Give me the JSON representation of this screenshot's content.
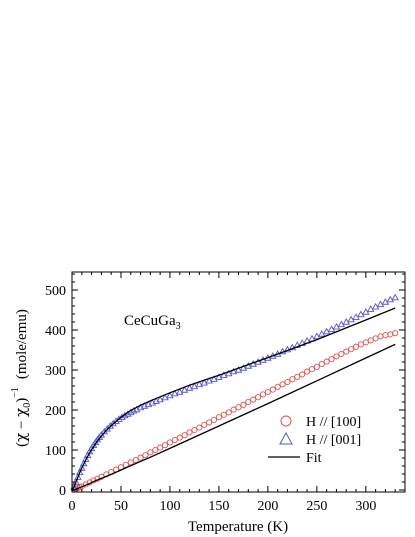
{
  "chart_data": {
    "type": "scatter",
    "annotation": {
      "base": "CeCuGa",
      "subscript": "3"
    },
    "xlabel": "Temperature (K)",
    "ylabel": {
      "prefix": "(",
      "chi": "χ",
      "minus": " − ",
      "chi0": "χ",
      "chi0_sub": "0",
      "close": ")",
      "sup": "−1",
      "units": "(mole/emu)"
    },
    "xlim": [
      0,
      340
    ],
    "ylim": [
      -5,
      545
    ],
    "xticks": [
      0,
      50,
      100,
      150,
      200,
      250,
      300
    ],
    "yticks": [
      0,
      100,
      200,
      300,
      400,
      500
    ],
    "grid": false,
    "legend": {
      "placement": "lower-right",
      "entries": [
        {
          "label": "H // [100]",
          "marker": "circle",
          "color": "#e05050"
        },
        {
          "label": "H // [001]",
          "marker": "triangle",
          "color": "#5555cc"
        },
        {
          "label": "Fit",
          "marker": "line",
          "color": "#000000"
        }
      ]
    },
    "series": [
      {
        "name": "H // [100]",
        "marker": "circle",
        "color": "#e05050",
        "x": [
          2,
          4,
          6,
          8,
          10,
          14,
          18,
          22,
          26,
          30,
          35,
          40,
          45,
          50,
          55,
          60,
          65,
          70,
          75,
          80,
          85,
          90,
          95,
          100,
          105,
          110,
          115,
          120,
          125,
          130,
          135,
          140,
          145,
          150,
          155,
          160,
          165,
          170,
          175,
          180,
          185,
          190,
          195,
          200,
          205,
          210,
          215,
          220,
          225,
          230,
          235,
          240,
          245,
          250,
          255,
          260,
          265,
          270,
          275,
          280,
          285,
          290,
          295,
          300,
          305,
          310,
          315,
          320,
          325,
          330
        ],
        "y": [
          1,
          3,
          5,
          7,
          9,
          14,
          19,
          24,
          28,
          33,
          39,
          45,
          51,
          57,
          63,
          69,
          75,
          81,
          87,
          94,
          100,
          106,
          112,
          119,
          125,
          131,
          137,
          144,
          150,
          156,
          163,
          169,
          175,
          182,
          188,
          194,
          201,
          207,
          213,
          220,
          226,
          232,
          239,
          245,
          251,
          258,
          264,
          270,
          277,
          283,
          289,
          296,
          302,
          308,
          315,
          321,
          327,
          334,
          340,
          346,
          352,
          358,
          364,
          369,
          374,
          379,
          384,
          387,
          389,
          392
        ]
      },
      {
        "name": "H // [001]",
        "marker": "triangle",
        "color": "#5555cc",
        "x": [
          2,
          4,
          6,
          8,
          10,
          12,
          14,
          16,
          18,
          20,
          22,
          24,
          26,
          28,
          30,
          33,
          36,
          39,
          42,
          45,
          48,
          51,
          54,
          57,
          60,
          63,
          66,
          70,
          74,
          78,
          82,
          86,
          90,
          95,
          100,
          105,
          110,
          115,
          120,
          125,
          130,
          135,
          140,
          145,
          150,
          155,
          160,
          165,
          170,
          175,
          180,
          185,
          190,
          195,
          200,
          205,
          210,
          215,
          220,
          225,
          230,
          235,
          240,
          245,
          250,
          255,
          260,
          265,
          270,
          275,
          280,
          285,
          290,
          295,
          300,
          305,
          310,
          315,
          320,
          325,
          330
        ],
        "y": [
          8,
          20,
          32,
          44,
          55,
          66,
          77,
          87,
          96,
          104,
          112,
          119,
          126,
          132,
          138,
          146,
          153,
          160,
          166,
          172,
          177,
          182,
          186,
          190,
          194,
          198,
          201,
          206,
          210,
          214,
          218,
          222,
          226,
          231,
          236,
          241,
          245,
          250,
          255,
          259,
          264,
          268,
          273,
          277,
          282,
          287,
          291,
          296,
          300,
          305,
          310,
          315,
          320,
          325,
          330,
          335,
          340,
          346,
          351,
          356,
          362,
          367,
          373,
          378,
          384,
          390,
          396,
          402,
          408,
          414,
          420,
          426,
          432,
          439,
          445,
          452,
          458,
          464,
          470,
          476,
          481
        ]
      }
    ],
    "fits": [
      {
        "name": "Fit",
        "color": "#000000",
        "x": [
          0.5,
          2,
          4,
          6,
          8,
          10,
          14,
          18,
          22,
          26,
          30,
          40,
          50,
          60,
          80,
          100,
          150,
          200,
          250,
          300,
          330
        ],
        "y": [
          -2,
          0,
          2,
          4,
          6,
          8,
          12,
          16,
          21,
          25,
          29,
          39,
          50,
          61,
          82,
          104,
          160,
          216,
          273,
          330,
          364
        ]
      },
      {
        "name": "Fit",
        "color": "#000000",
        "x": [
          0.5,
          2,
          4,
          6,
          8,
          10,
          12,
          15,
          20,
          25,
          30,
          35,
          40,
          50,
          60,
          70,
          80,
          100,
          120,
          150,
          200,
          250,
          300,
          330
        ],
        "y": [
          1,
          8,
          20,
          32,
          44,
          55,
          65,
          80,
          101,
          119,
          135,
          149,
          161,
          182,
          199,
          212,
          223,
          243,
          262,
          287,
          331,
          376,
          425,
          455
        ]
      }
    ]
  }
}
